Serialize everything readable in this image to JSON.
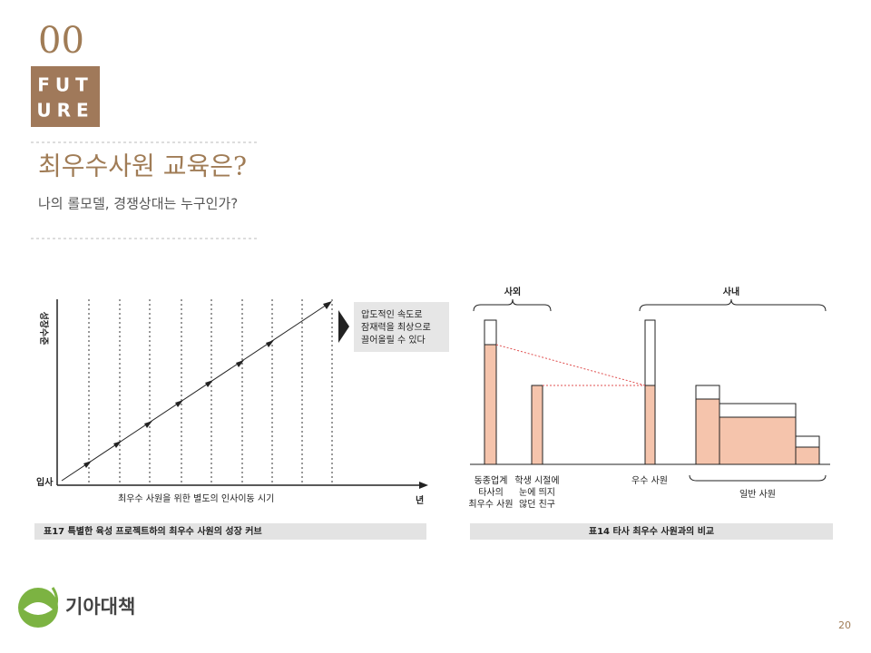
{
  "header": {
    "number": "00",
    "badge": [
      "FUT",
      "URE"
    ],
    "title": "최우수사원 교육은?",
    "subtitle": "나의 롤모델, 경쟁상대는 누구인가?"
  },
  "left_figure": {
    "y_label": "성장수준",
    "origin_label": "입사",
    "x_end_label": "년",
    "x_label": "최우수 사원을 위한 별도의 인사이동 시기",
    "callout": [
      "압도적인 속도로",
      "잠재력을 최상으로",
      "끌어올릴 수 있다"
    ],
    "caption": "표17  특별한 육성 프로젝트하의 최우수 사원의 성장 커브"
  },
  "right_figure": {
    "outside_label": "사외",
    "inside_label": "사내",
    "labels": [
      [
        "동종업계",
        "타사의",
        "최우수 사원"
      ],
      [
        "학생 시절에",
        "눈에 띄지",
        "않던 친구"
      ],
      [
        "우수 사원"
      ],
      [
        "일반 사원"
      ]
    ],
    "caption": "표14  타사 최우수 사원과의 비교"
  },
  "footer": {
    "logo_text": "기아대책",
    "page_number": "20"
  }
}
